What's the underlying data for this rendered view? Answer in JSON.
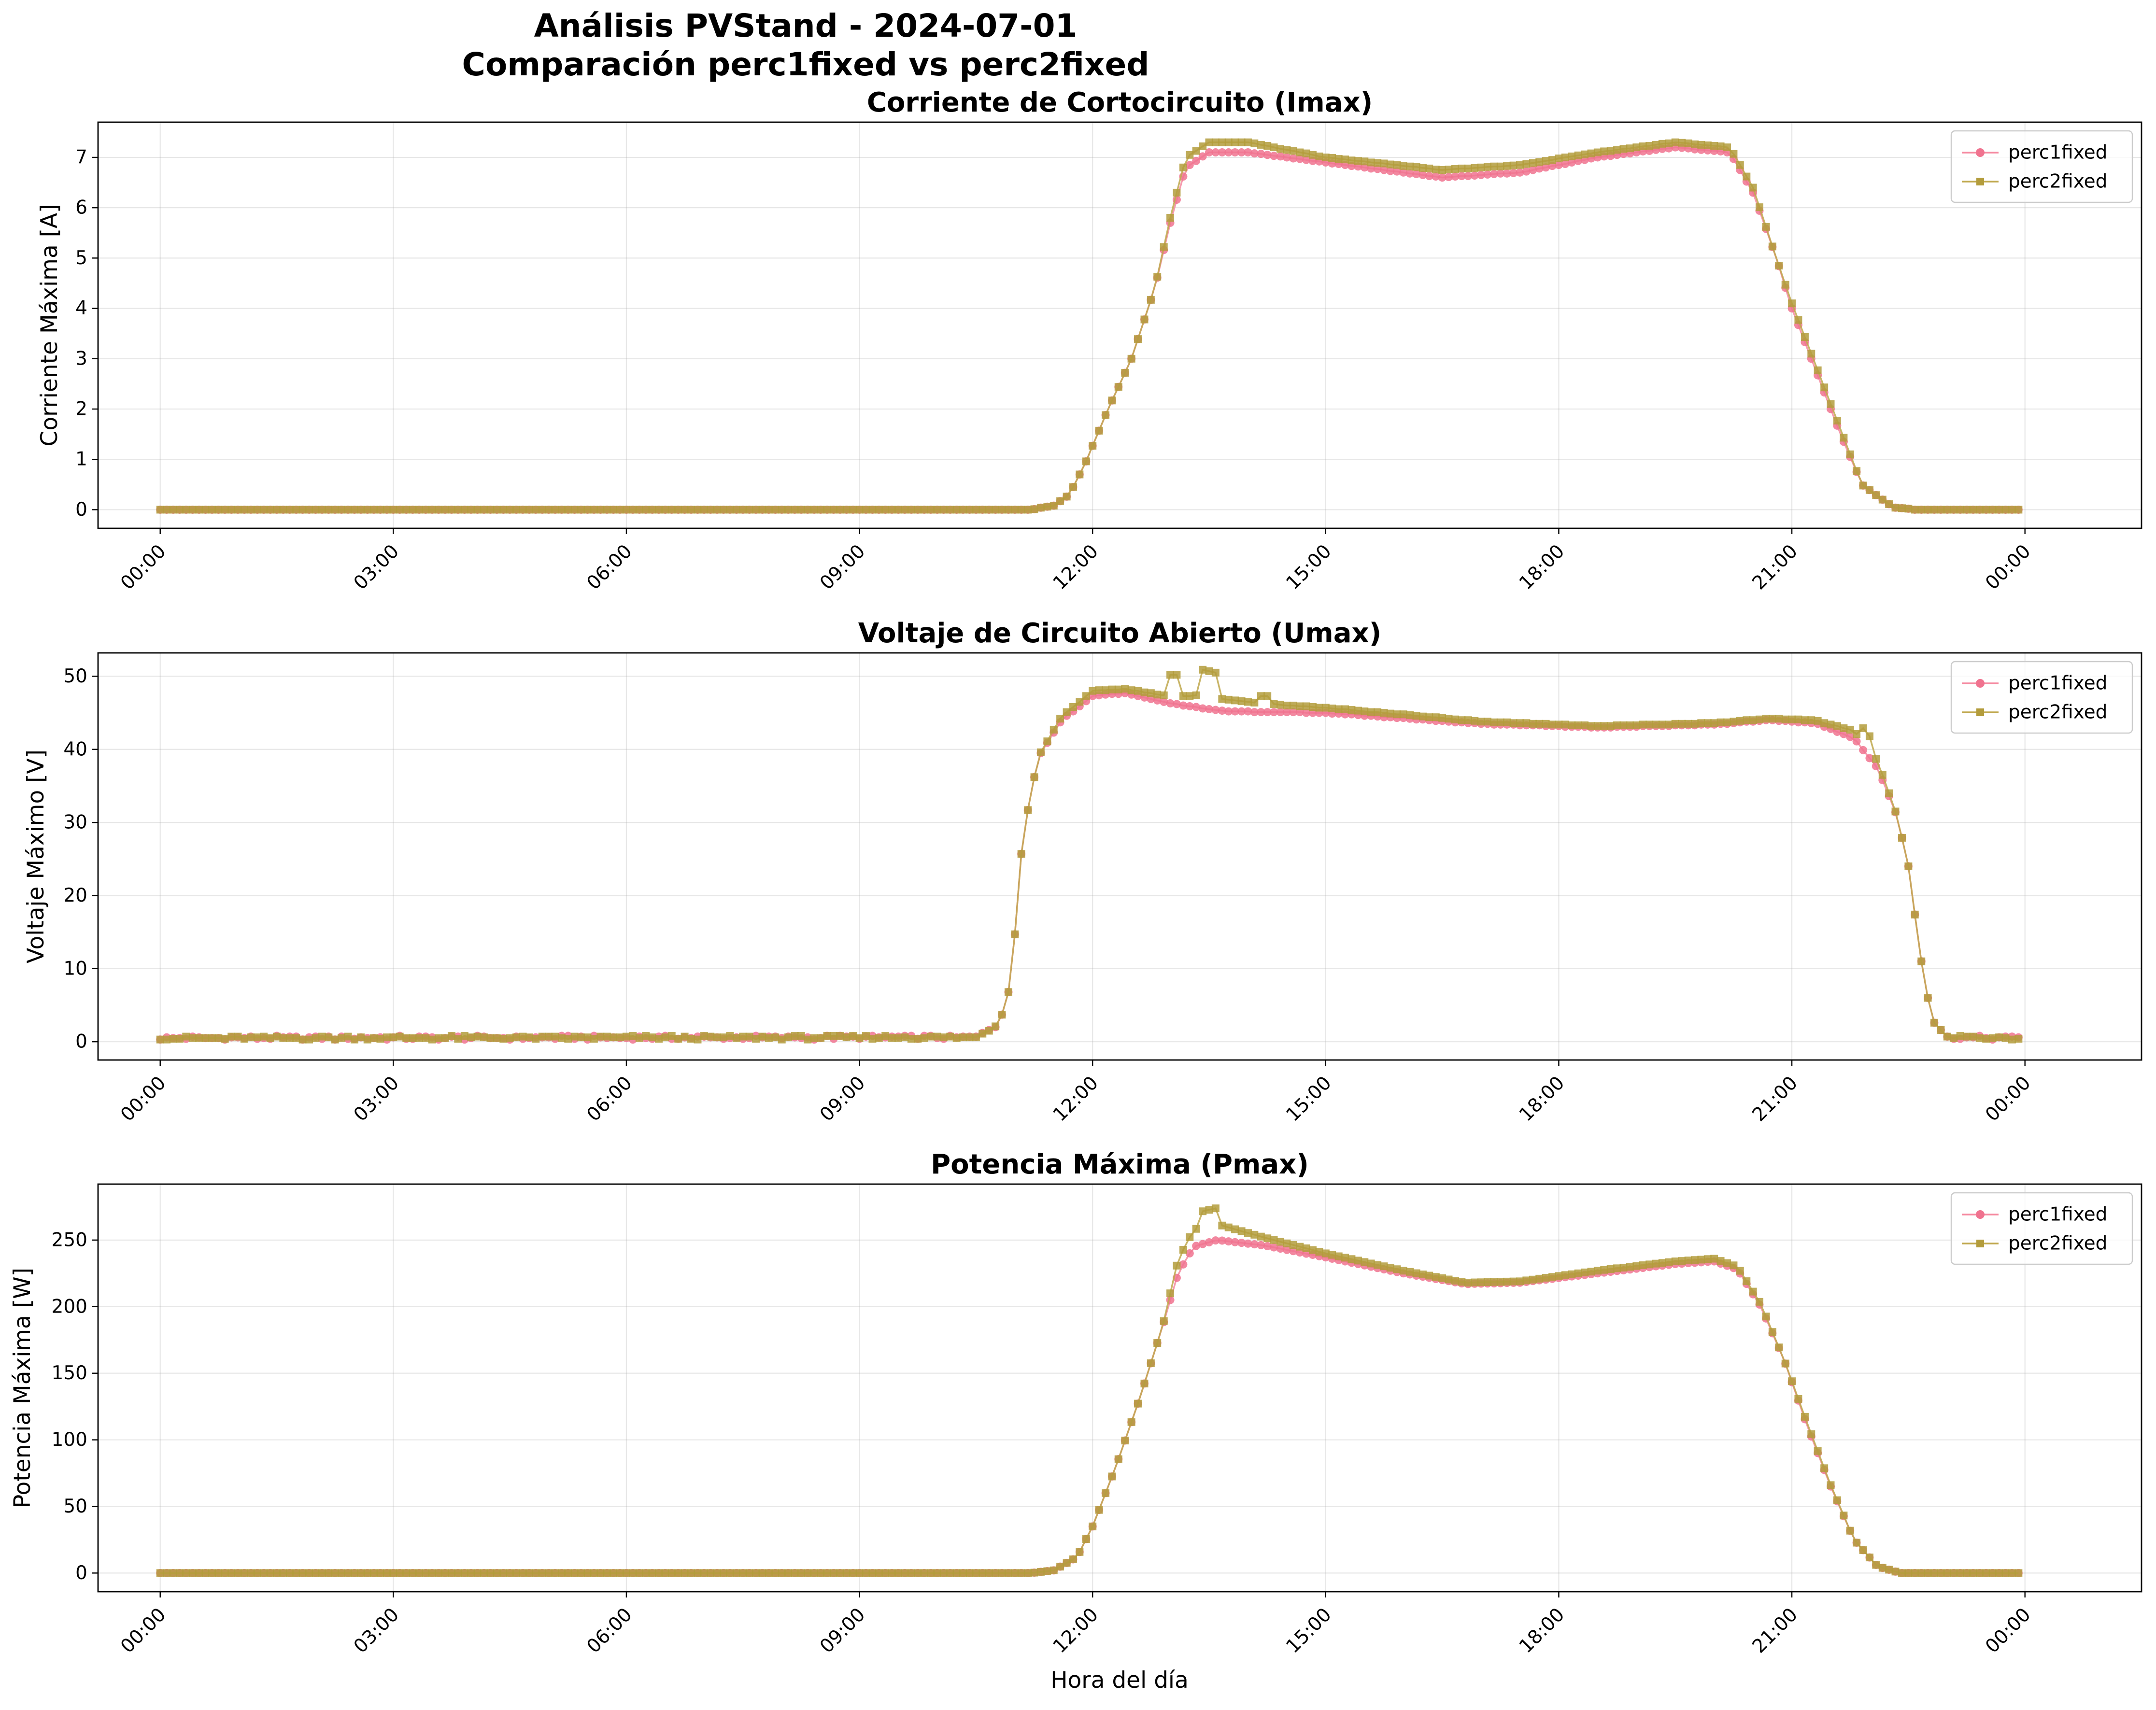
{
  "figure": {
    "suptitle_line1": "Análisis PVStand - 2024-07-01",
    "suptitle_line2": "Comparación perc1fixed vs perc2fixed",
    "xlabel": "Hora del día"
  },
  "colors": {
    "perc1fixed": "#f0738f",
    "perc2fixed": "#b39c3c",
    "perc1fixed_line": "#f58aa0",
    "perc2fixed_line": "#c0a84e"
  },
  "markers": {
    "perc1fixed": "circle",
    "perc2fixed": "square"
  },
  "chart_data": [
    {
      "type": "line",
      "title": "Corriente de Cortocircuito (Imax)",
      "xlabel": "",
      "ylabel": "Corriente Máxima [A]",
      "x_unit": "hours since 00:00 of 2024-07-01",
      "xlim": [
        -0.8,
        25.5
      ],
      "ylim": [
        -0.37,
        7.7
      ],
      "xticks": [
        0,
        3,
        6,
        9,
        12,
        15,
        18,
        21,
        24
      ],
      "xtick_labels": [
        "00:00",
        "03:00",
        "06:00",
        "09:00",
        "12:00",
        "15:00",
        "18:00",
        "21:00",
        "00:00"
      ],
      "yticks": [
        0,
        1,
        2,
        3,
        4,
        5,
        6,
        7
      ],
      "ytick_labels": [
        "0",
        "1",
        "2",
        "3",
        "4",
        "5",
        "6",
        "7"
      ],
      "legend": "top-right",
      "grid": true,
      "x": [],
      "series": [
        {
          "name": "perc1fixed",
          "values": []
        },
        {
          "name": "perc2fixed",
          "values": []
        }
      ]
    },
    {
      "type": "line",
      "title": "Voltaje de Circuito Abierto (Umax)",
      "xlabel": "",
      "ylabel": "Voltaje Máximo [V]",
      "x_unit": "hours since 00:00 of 2024-07-01",
      "xlim": [
        -0.8,
        25.5
      ],
      "ylim": [
        -2.5,
        53.2
      ],
      "xticks": [
        0,
        3,
        6,
        9,
        12,
        15,
        18,
        21,
        24
      ],
      "xtick_labels": [
        "00:00",
        "03:00",
        "06:00",
        "09:00",
        "12:00",
        "15:00",
        "18:00",
        "21:00",
        "00:00"
      ],
      "yticks": [
        0,
        10,
        20,
        30,
        40,
        50
      ],
      "ytick_labels": [
        "0",
        "10",
        "20",
        "30",
        "40",
        "50"
      ],
      "legend": "top-right",
      "grid": true,
      "x": [],
      "series": [
        {
          "name": "perc1fixed",
          "values": []
        },
        {
          "name": "perc2fixed",
          "values": []
        }
      ]
    },
    {
      "type": "line",
      "title": "Potencia Máxima (Pmax)",
      "xlabel": "Hora del día",
      "ylabel": "Potencia Máxima [W]",
      "x_unit": "hours since 00:00 of 2024-07-01",
      "xlim": [
        -0.8,
        25.5
      ],
      "ylim": [
        -14,
        292
      ],
      "xticks": [
        0,
        3,
        6,
        9,
        12,
        15,
        18,
        21,
        24
      ],
      "xtick_labels": [
        "00:00",
        "03:00",
        "06:00",
        "09:00",
        "12:00",
        "15:00",
        "18:00",
        "21:00",
        "00:00"
      ],
      "yticks": [
        0,
        50,
        100,
        150,
        200,
        250
      ],
      "ytick_labels": [
        "0",
        "50",
        "100",
        "150",
        "200",
        "250"
      ],
      "legend": "top-right",
      "grid": true,
      "x": [],
      "series": [
        {
          "name": "perc1fixed",
          "values": []
        },
        {
          "name": "perc2fixed",
          "values": []
        }
      ]
    }
  ]
}
